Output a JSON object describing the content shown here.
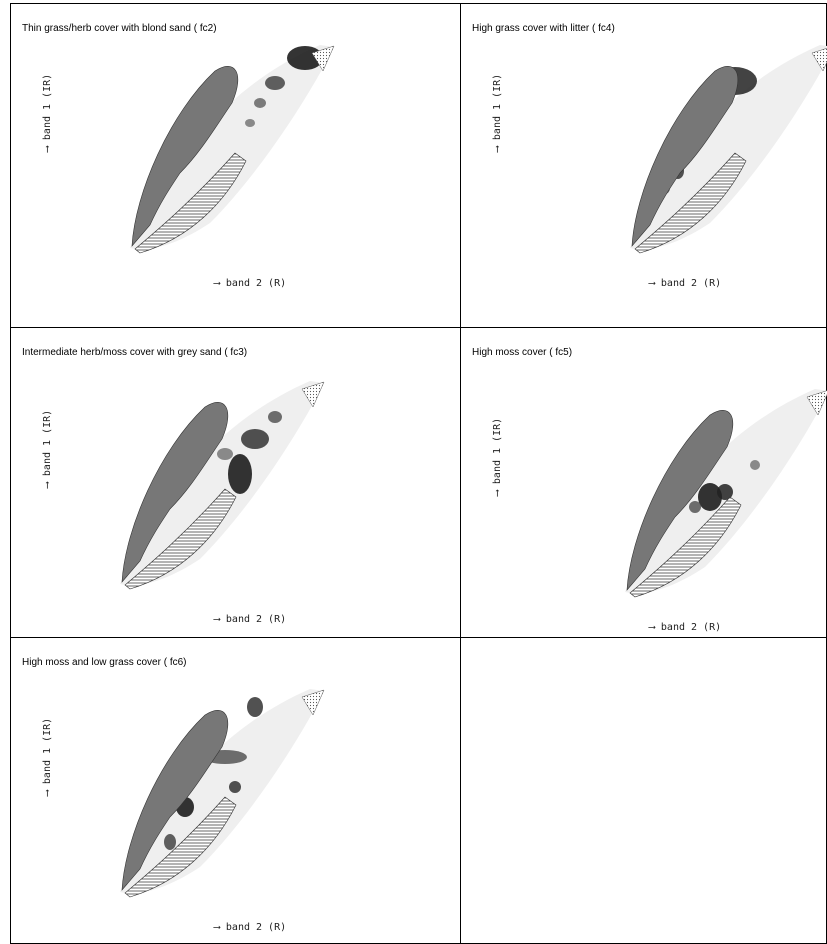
{
  "panels": [
    {
      "title": "Thin grass/herb cover with blond sand  ( fc2)",
      "ylabel": "⟶ band 1 (IR)",
      "xlabel": "⟶ band 2 (R)"
    },
    {
      "title": "High grass cover with litter  ( fc4)",
      "ylabel": "⟶ band 1 (IR)",
      "xlabel": "⟶ band 2 (R)"
    },
    {
      "title": "Intermediate herb/moss cover with grey sand  ( fc3)",
      "ylabel": "⟶ band 1 (IR)",
      "xlabel": "⟶ band 2 (R)"
    },
    {
      "title": "High moss cover  ( fc5)",
      "ylabel": "⟶ band 1 (IR)",
      "xlabel": "⟶ band 2 (R)"
    },
    {
      "title": "High moss and low grass cover  ( fc6)",
      "ylabel": "⟶ band 1 (IR)",
      "xlabel": "⟶ band 2 (R)"
    }
  ]
}
